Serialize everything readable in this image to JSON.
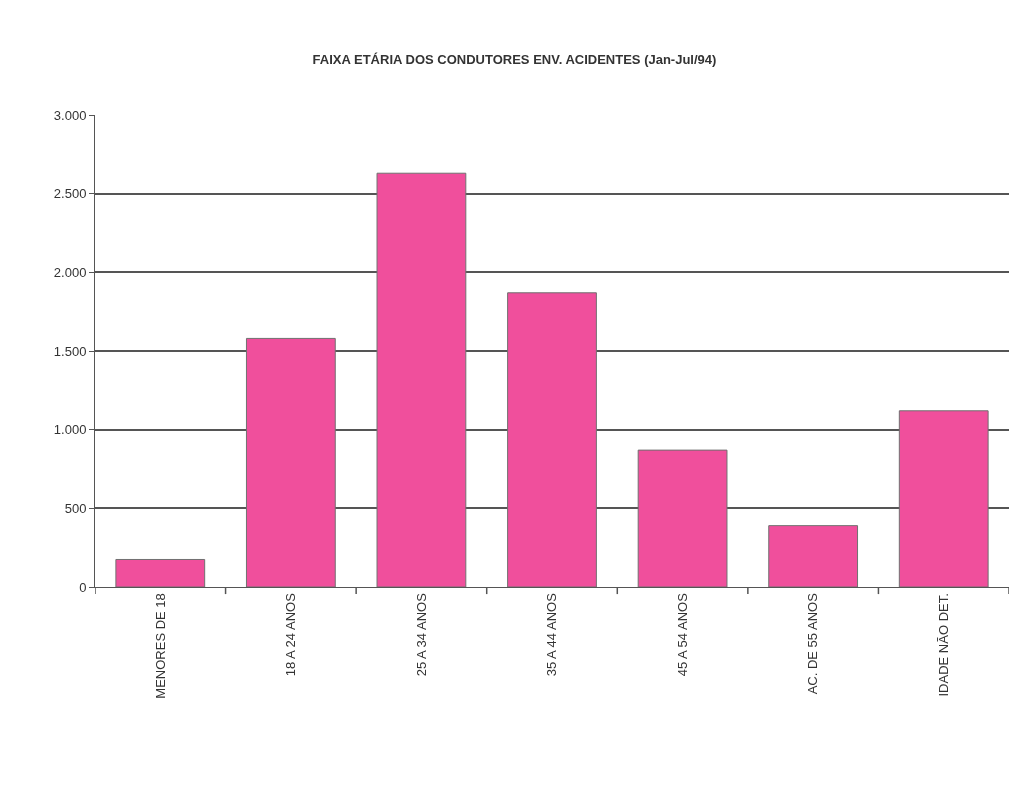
{
  "chart_data": {
    "type": "bar",
    "title": "FAIXA ETÁRIA DOS CONDUTORES ENV. ACIDENTES (Jan-Jul/94)",
    "categories": [
      "MENORES DE 18",
      "18 A 24 ANOS",
      "25 A 34 ANOS",
      "35 A 44 ANOS",
      "45 A 54 ANOS",
      "AC. DE 55 ANOS",
      "IDADE NÃO DET."
    ],
    "values": [
      175,
      1580,
      2630,
      1870,
      870,
      390,
      1120
    ],
    "color": "#f04f9c",
    "ylim": [
      0,
      3000
    ],
    "yticks": [
      0,
      {
        "value": 500,
        "label": "500"
      },
      {
        "value": 1000,
        "label": "1.000"
      },
      {
        "value": 1500,
        "label": "1.500"
      },
      {
        "value": 2000,
        "label": "2.000"
      },
      {
        "value": 2500,
        "label": "2.500"
      },
      {
        "value": 3000,
        "label": "3.000"
      }
    ],
    "grid": "y",
    "legend": false
  }
}
